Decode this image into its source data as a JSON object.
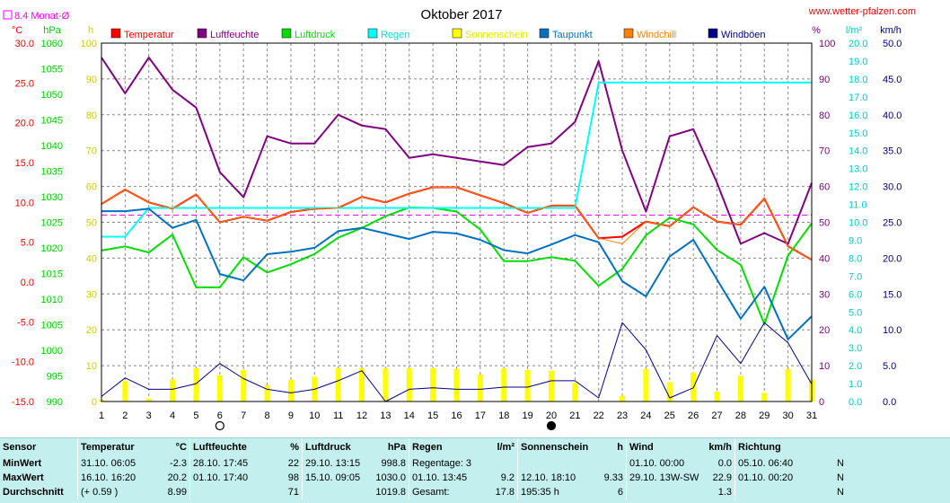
{
  "chart_data": {
    "type": "line",
    "title": "Oktober 2017",
    "source": "www.wetter-pfalzen.com",
    "avg_label": "8.4 Monat-Ø",
    "avg_value": 8.4,
    "days": [
      1,
      2,
      3,
      4,
      5,
      6,
      7,
      8,
      9,
      10,
      11,
      12,
      13,
      14,
      15,
      16,
      17,
      18,
      19,
      20,
      21,
      22,
      23,
      24,
      25,
      26,
      27,
      28,
      29,
      30,
      31
    ],
    "axes": {
      "temp": {
        "unit": "°C",
        "min": -15,
        "max": 30,
        "ticks": [
          "30.0",
          "25.0",
          "20.0",
          "15.0",
          "10.0",
          "5.0",
          "0.0",
          "-5.0",
          "-10.0",
          "-15.0"
        ]
      },
      "pressure": {
        "unit": "hPa",
        "min": 990,
        "max": 1060,
        "ticks": [
          "1060",
          "1055",
          "1050",
          "1045",
          "1040",
          "1035",
          "1030",
          "1025",
          "1020",
          "1015",
          "1010",
          "1005",
          "1000",
          "995",
          "990"
        ]
      },
      "sunshine": {
        "unit": "h",
        "min": 0,
        "max": 100,
        "ticks": [
          "100",
          "90",
          "80",
          "70",
          "60",
          "50",
          "40",
          "30",
          "20",
          "10",
          "0"
        ]
      },
      "humidity": {
        "unit": "%",
        "min": 0,
        "max": 100,
        "ticks": [
          "100",
          "90",
          "80",
          "70",
          "60",
          "50",
          "40",
          "30",
          "20",
          "10",
          "0"
        ]
      },
      "rain": {
        "unit": "l/m²",
        "min": 0,
        "max": 20,
        "ticks": [
          "20.0",
          "19.0",
          "18.0",
          "17.0",
          "16.0",
          "15.0",
          "14.0",
          "13.0",
          "12.0",
          "11.0",
          "10.0",
          "9.0",
          "8.0",
          "7.0",
          "6.0",
          "5.0",
          "4.0",
          "3.0",
          "2.0",
          "1.0",
          "0.0"
        ]
      },
      "wind": {
        "unit": "km/h",
        "min": 0,
        "max": 50,
        "ticks": [
          "50.0",
          "45.0",
          "40.0",
          "35.0",
          "30.0",
          "25.0",
          "20.0",
          "15.0",
          "10.0",
          "5.0",
          "0.0"
        ]
      }
    },
    "series": [
      {
        "name": "Temperatur",
        "color": "#ff0000",
        "axis": "temp",
        "values": [
          9.8,
          11.6,
          10.0,
          9.2,
          11.0,
          7.5,
          8.2,
          7.7,
          8.8,
          9.2,
          9.3,
          10.7,
          10.0,
          11.1,
          11.9,
          11.9,
          10.9,
          9.9,
          8.7,
          9.6,
          9.6,
          5.5,
          5.7,
          7.6,
          7.0,
          9.4,
          7.6,
          7.2,
          10.5,
          4.5,
          2.8
        ]
      },
      {
        "name": "Luftfeuchte",
        "color": "#800080",
        "axis": "humidity",
        "values": [
          96,
          86,
          96,
          87,
          82,
          64,
          57,
          74,
          72,
          72,
          80,
          77,
          76,
          68,
          69,
          68,
          67,
          66,
          71,
          72,
          78,
          95,
          70,
          53,
          74,
          76,
          61,
          44,
          47,
          44,
          61
        ]
      },
      {
        "name": "Luftdruck",
        "color": "#00dd00",
        "axis": "pressure",
        "values": [
          1019.5,
          1020.3,
          1019.1,
          1022.6,
          1012.3,
          1012.3,
          1018.2,
          1015.2,
          1016.8,
          1018.8,
          1022.0,
          1023.9,
          1026.2,
          1027.9,
          1027.8,
          1027.1,
          1023.6,
          1017.4,
          1017.4,
          1018.2,
          1017.5,
          1012.6,
          1015.9,
          1022.5,
          1025.9,
          1024.6,
          1019.6,
          1016.7,
          1005.1,
          1018.5,
          1024.8
        ]
      },
      {
        "name": "Regen",
        "color": "#00ffff",
        "axis": "rain",
        "values": [
          9.2,
          9.2,
          10.8,
          10.8,
          10.8,
          10.8,
          10.8,
          10.8,
          10.8,
          10.8,
          10.8,
          10.8,
          10.8,
          10.8,
          10.8,
          10.8,
          10.8,
          10.8,
          10.8,
          10.8,
          10.8,
          17.8,
          17.8,
          17.8,
          17.8,
          17.8,
          17.8,
          17.8,
          17.8,
          17.8,
          17.8
        ]
      },
      {
        "name": "Sonnenschein",
        "color": "#ffff00",
        "axis": "sunshine",
        "type": "bar",
        "values": [
          0.5,
          5.8,
          0.8,
          6.2,
          9.3,
          7.3,
          8.8,
          4.5,
          6.1,
          6.9,
          9.3,
          9.3,
          9.3,
          9.3,
          9.3,
          9.1,
          7.5,
          9.2,
          8.8,
          8.6,
          5.2,
          0,
          1.6,
          9.1,
          5.4,
          8.1,
          2.8,
          7.2,
          2.4,
          9.0,
          6.1
        ]
      },
      {
        "name": "Taupunkt",
        "color": "#0070c0",
        "axis": "temp",
        "values": [
          8.9,
          8.9,
          9.2,
          6.8,
          7.8,
          1.0,
          0.2,
          3.5,
          3.8,
          4.3,
          6.4,
          6.8,
          6.1,
          5.4,
          6.3,
          6.1,
          5.3,
          4.0,
          3.6,
          4.7,
          5.9,
          5.0,
          0.1,
          -1.8,
          3.2,
          5.3,
          0.3,
          -4.6,
          -0.6,
          -7.2,
          -4.3
        ]
      },
      {
        "name": "Windchill",
        "color": "#ff8000",
        "axis": "temp",
        "values": [
          9.8,
          11.6,
          10.0,
          9.2,
          11.0,
          7.5,
          8.2,
          7.7,
          8.8,
          9.2,
          9.3,
          10.7,
          10.0,
          11.1,
          11.9,
          11.9,
          10.9,
          9.9,
          8.7,
          9.6,
          9.6,
          5.5,
          4.8,
          7.6,
          7.0,
          9.4,
          7.6,
          7.2,
          10.5,
          4.5,
          2.8
        ]
      },
      {
        "name": "Windböen",
        "color": "#00008b",
        "axis": "wind",
        "values": [
          0.7,
          3.3,
          1.7,
          1.7,
          2.5,
          5.3,
          3.2,
          1.7,
          1.2,
          1.7,
          2.9,
          4.3,
          0,
          1.7,
          1.9,
          1.7,
          1.7,
          2.0,
          2.0,
          2.9,
          2.9,
          0.5,
          11.0,
          7.2,
          0.5,
          1.9,
          9.2,
          5.3,
          11.0,
          8.2,
          2.4
        ]
      }
    ],
    "moon_markers": [
      {
        "day": 6,
        "phase": "full"
      },
      {
        "day": 20,
        "phase": "new"
      }
    ],
    "grid": true,
    "legend_position": "top"
  },
  "stats": {
    "headers": {
      "sensor": "Sensor",
      "temp": "Temperatur",
      "temp_unit": "°C",
      "hum": "Luftfeuchte",
      "hum_unit": "%",
      "press": "Luftdruck",
      "press_unit": "hPa",
      "rain": "Regen",
      "rain_unit": "l/m²",
      "sun": "Sonnenschein",
      "sun_unit": "h",
      "wind": "Wind",
      "wind_unit": "km/h",
      "dir": "Richtung"
    },
    "rows": [
      {
        "label": "MinWert",
        "temp_time": "31.10.  06:05",
        "temp_val": "-2.3",
        "hum_time": "28.10.  17:45",
        "hum_val": "22",
        "press_time": "29.10.  13:15",
        "press_val": "998.8",
        "rain_text": "Regentage: 3",
        "rain_val": "",
        "sun_time": "",
        "sun_val": "",
        "wind_time": "01.10.  00:00",
        "wind_val": "0.0",
        "dir_time": "05.10.  06:40",
        "dir_val": "N"
      },
      {
        "label": "MaxWert",
        "temp_time": "16.10.  16:20",
        "temp_val": "20.2",
        "hum_time": "01.10.  17:40",
        "hum_val": "98",
        "press_time": "15.10.  09:05",
        "press_val": "1030.0",
        "rain_text": "01.10.  13:45",
        "rain_val": "9.2",
        "sun_time": "12.10.  18:10",
        "sun_val": "9.33",
        "wind_time": "29.10.  13W-SW",
        "wind_val": "22.9",
        "dir_time": "01.10.  00:20",
        "dir_val": "N"
      },
      {
        "label": "Durchschnitt",
        "temp_time": "(+ 0.59 )",
        "temp_val": "8.99",
        "hum_time": "",
        "hum_val": "71",
        "press_time": "",
        "press_val": "1019.8",
        "rain_text": "Gesamt:",
        "rain_val": "17.8",
        "sun_time": "195:35 h",
        "sun_val": "6",
        "wind_time": "",
        "wind_val": "1.3",
        "dir_time": "",
        "dir_val": "N"
      }
    ]
  }
}
